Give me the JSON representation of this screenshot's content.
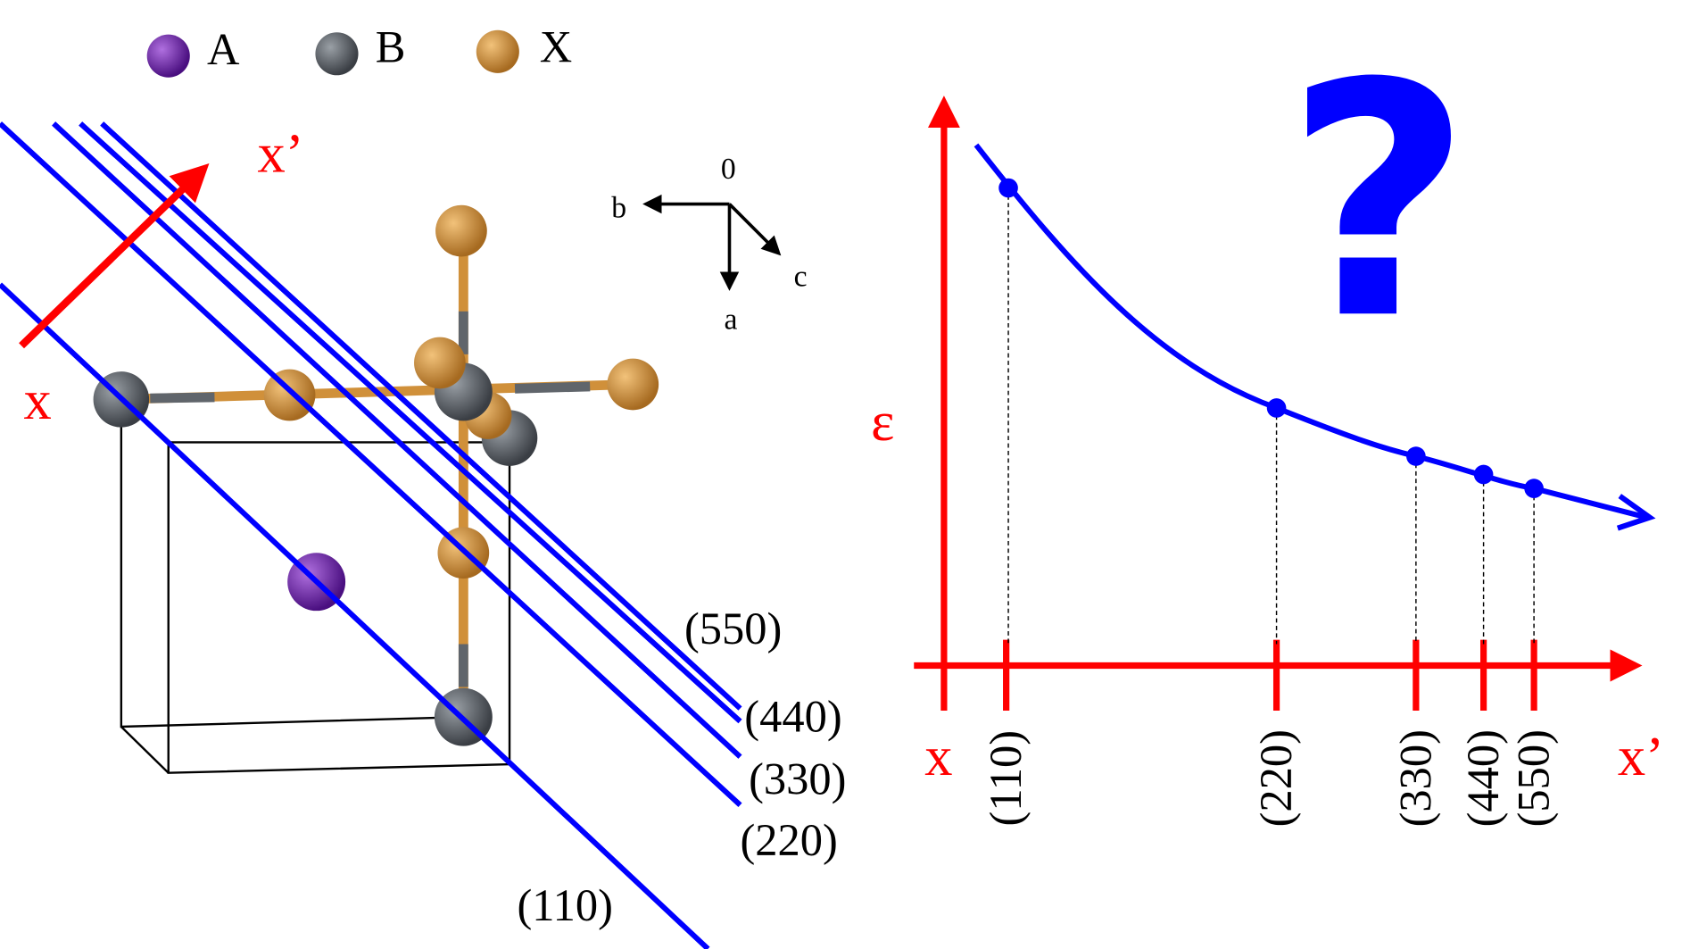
{
  "legend": {
    "items": [
      "A",
      "B",
      "X"
    ]
  },
  "crystal": {
    "axes": {
      "origin": "0",
      "a": "a",
      "b": "b",
      "c": "c"
    },
    "direction": {
      "start": "x",
      "end": "x’"
    },
    "planes": [
      "(550)",
      "(440)",
      "(330)",
      "(220)",
      "(110)"
    ]
  },
  "plot": {
    "y_label": "ε",
    "x_start": "x",
    "x_end": "x’",
    "ticks": [
      "(110)",
      "(220)",
      "(330)",
      "(440)",
      "(550)"
    ],
    "annotation": "?"
  }
}
